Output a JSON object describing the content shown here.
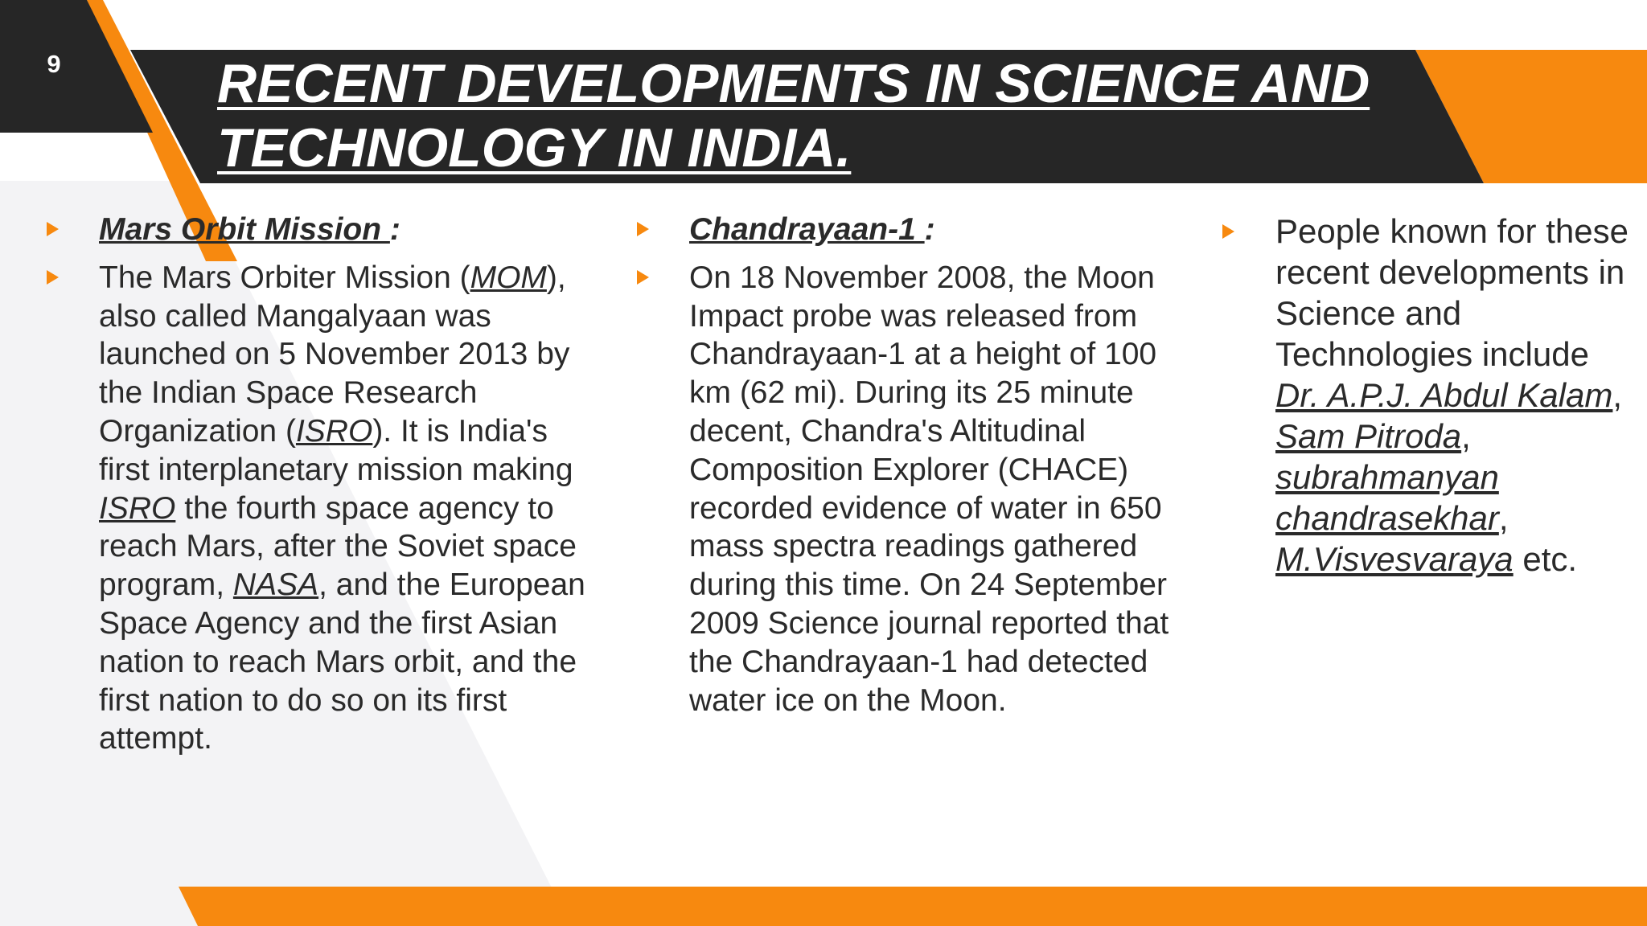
{
  "slide": {
    "number": "9",
    "title_line1": "RECENT DEVELOPMENTS IN SCIENCE AND",
    "title_line2": "TECHNOLOGY IN  INDIA."
  },
  "colors": {
    "dark": "#262626",
    "orange": "#f7890f",
    "light_gray": "#f3f3f5",
    "text": "#2a2a2a"
  },
  "column1": {
    "heading": "Mars Orbit Mission ",
    "heading_suffix": ":",
    "p1": "The Mars Orbiter Mission (",
    "link_mom": "MOM",
    "p2": "), also called Mangalyaan was launched on 5 November 2013 by the  Indian Space Research Organization (",
    "link_isro1": "ISRO",
    "p3": "). It is India's first interplanetary mission making ",
    "link_isro2": "ISRO",
    "p4": " the  fourth space agency to reach Mars, after the Soviet space program, ",
    "link_nasa": "NASA",
    "p5": ", and the European Space  Agency and the first Asian nation to reach Mars orbit, and the first nation to do so on its first  attempt."
  },
  "column2": {
    "heading": "Chandrayaan-1 ",
    "heading_suffix": ":",
    "body": "On 18 November 2008, the Moon Impact probe was released from Chandrayaan-1 at a height of 100 km (62 mi). During its 25 minute decent, Chandra's Altitudinal Composition Explorer (CHACE) recorded evidence of water in 650 mass spectra readings gathered during this time. On 24 September 2009 Science journal reported that the Chandrayaan-1 had detected water ice on the Moon."
  },
  "column3": {
    "intro": "People known for these recent developments in Science and Technologies include ",
    "name1": "Dr. A.P.J. Abdul Kalam",
    "sep1": ", ",
    "name2": "Sam Pitroda",
    "sep2": ", ",
    "name3": "subrahmanyan chandrasekhar",
    "sep3": ", ",
    "name4": "M.Visvesvaraya",
    "outro": " etc."
  }
}
